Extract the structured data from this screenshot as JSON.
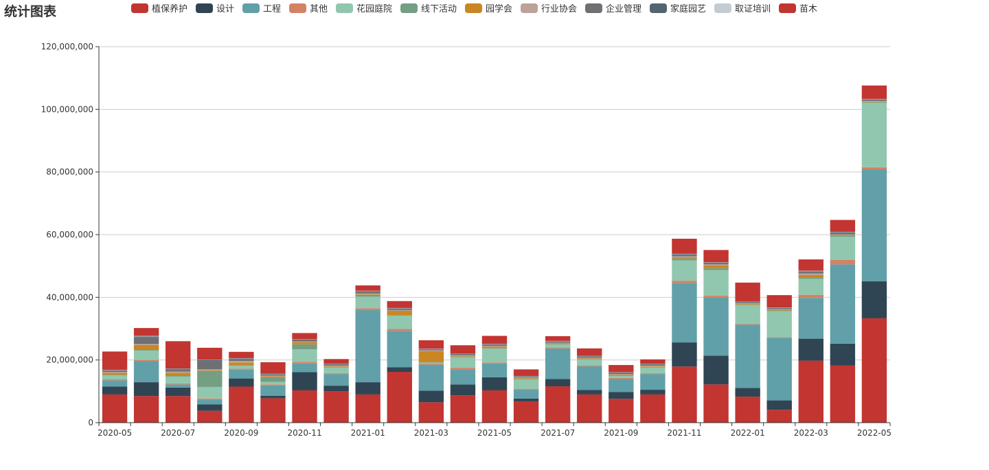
{
  "chart_data": {
    "type": "bar",
    "stacked": true,
    "title": "统计图表",
    "legend_position": "top",
    "grid": true,
    "ylim": [
      0,
      120000000
    ],
    "yticks": [
      "0",
      "20,000,000",
      "40,000,000",
      "60,000,000",
      "80,000,000",
      "100,000,000",
      "120,000,000"
    ],
    "ytick_values": [
      0,
      20000000,
      40000000,
      60000000,
      80000000,
      100000000,
      120000000
    ],
    "categories": [
      "2020-05",
      "2020-06",
      "2020-07",
      "2020-08",
      "2020-09",
      "2020-10",
      "2020-11",
      "2020-12",
      "2021-01",
      "2021-02",
      "2021-03",
      "2021-04",
      "2021-05",
      "2021-06",
      "2021-07",
      "2021-08",
      "2021-09",
      "2021-10",
      "2021-11",
      "2021-12",
      "2022-01",
      "2022-02",
      "2022-03",
      "2022-04",
      "2022-05"
    ],
    "xtick_labels": [
      "2020-05",
      "",
      "2020-07",
      "",
      "2020-09",
      "",
      "2020-11",
      "",
      "2021-01",
      "",
      "2021-03",
      "",
      "2021-05",
      "",
      "2021-07",
      "",
      "2021-09",
      "",
      "2021-11",
      "",
      "2022-01",
      "",
      "2022-03",
      "",
      "2022-05"
    ],
    "series": [
      {
        "name": "植保养护",
        "color": "#c23531",
        "values": [
          9000000,
          8500000,
          8500000,
          3800000,
          11500000,
          7800000,
          10300000,
          10000000,
          9000000,
          16200000,
          6500000,
          8700000,
          10300000,
          6800000,
          11600000,
          9000000,
          7600000,
          9000000,
          17900000,
          12200000,
          8300000,
          4100000,
          19800000,
          18200000,
          33300000
        ]
      },
      {
        "name": "设计",
        "color": "#2f4554",
        "values": [
          2500000,
          4400000,
          2700000,
          2000000,
          2600000,
          800000,
          5800000,
          1800000,
          3900000,
          1500000,
          3700000,
          3500000,
          4200000,
          900000,
          2300000,
          1400000,
          2200000,
          1500000,
          7700000,
          9200000,
          2800000,
          3000000,
          7000000,
          7000000,
          11800000
        ]
      },
      {
        "name": "工程",
        "color": "#61a0a8",
        "values": [
          2000000,
          6700000,
          1000000,
          1600000,
          2800000,
          3300000,
          2800000,
          3700000,
          23000000,
          11600000,
          8300000,
          4800000,
          4400000,
          2800000,
          9800000,
          7600000,
          4200000,
          5000000,
          19000000,
          18600000,
          20200000,
          20000000,
          13000000,
          25300000,
          35700000
        ]
      },
      {
        "name": "其他",
        "color": "#d48265",
        "values": [
          300000,
          400000,
          300000,
          300000,
          300000,
          300000,
          500000,
          300000,
          600000,
          600000,
          300000,
          500000,
          300000,
          300000,
          300000,
          300000,
          300000,
          300000,
          700000,
          500000,
          200000,
          200000,
          1000000,
          1400000,
          700000
        ]
      },
      {
        "name": "花园庭院",
        "color": "#91c7ae",
        "values": [
          1300000,
          3000000,
          2200000,
          3700000,
          1000000,
          800000,
          4000000,
          1800000,
          3700000,
          4200000,
          300000,
          3400000,
          4400000,
          3000000,
          900000,
          1800000,
          600000,
          1800000,
          6500000,
          8200000,
          6000000,
          8300000,
          5100000,
          7400000,
          20600000
        ]
      },
      {
        "name": "线下活动",
        "color": "#749f83",
        "values": [
          200000,
          200000,
          300000,
          5100000,
          200000,
          1500000,
          1600000,
          200000,
          600000,
          200000,
          200000,
          200000,
          200000,
          200000,
          200000,
          200000,
          200000,
          200000,
          600000,
          600000,
          200000,
          200000,
          400000,
          400000,
          200000
        ]
      },
      {
        "name": "园学会",
        "color": "#ca8622",
        "values": [
          600000,
          1600000,
          900000,
          200000,
          800000,
          300000,
          700000,
          200000,
          200000,
          1400000,
          3500000,
          200000,
          400000,
          200000,
          200000,
          200000,
          200000,
          200000,
          400000,
          900000,
          200000,
          200000,
          800000,
          200000,
          200000
        ]
      },
      {
        "name": "行业协会",
        "color": "#bda29a",
        "values": [
          300000,
          300000,
          400000,
          300000,
          500000,
          200000,
          200000,
          200000,
          200000,
          200000,
          300000,
          200000,
          300000,
          200000,
          200000,
          200000,
          200000,
          200000,
          300000,
          300000,
          200000,
          200000,
          500000,
          200000,
          200000
        ]
      },
      {
        "name": "企业管理",
        "color": "#6e7074",
        "values": [
          300000,
          2200000,
          700000,
          2700000,
          600000,
          300000,
          500000,
          300000,
          600000,
          400000,
          200000,
          200000,
          300000,
          200000,
          300000,
          300000,
          300000,
          300000,
          400000,
          400000,
          200000,
          200000,
          400000,
          400000,
          300000
        ]
      },
      {
        "name": "家庭园艺",
        "color": "#546570",
        "values": [
          200000,
          200000,
          200000,
          300000,
          200000,
          200000,
          200000,
          200000,
          200000,
          200000,
          200000,
          200000,
          200000,
          200000,
          200000,
          200000,
          200000,
          200000,
          300000,
          200000,
          200000,
          200000,
          300000,
          300000,
          200000
        ]
      },
      {
        "name": "取证培训",
        "color": "#c4ccd3",
        "values": [
          100000,
          200000,
          100000,
          100000,
          100000,
          100000,
          100000,
          100000,
          100000,
          100000,
          100000,
          100000,
          100000,
          100000,
          100000,
          100000,
          100000,
          100000,
          100000,
          100000,
          100000,
          100000,
          200000,
          100000,
          100000
        ]
      },
      {
        "name": "苗木",
        "color": "#c23531",
        "values": [
          5900000,
          2500000,
          8700000,
          3800000,
          2000000,
          3700000,
          1900000,
          1500000,
          1700000,
          2200000,
          2700000,
          2700000,
          2600000,
          2100000,
          1500000,
          2400000,
          2300000,
          1400000,
          4800000,
          3900000,
          6100000,
          4000000,
          3600000,
          3800000,
          4300000
        ]
      }
    ]
  }
}
